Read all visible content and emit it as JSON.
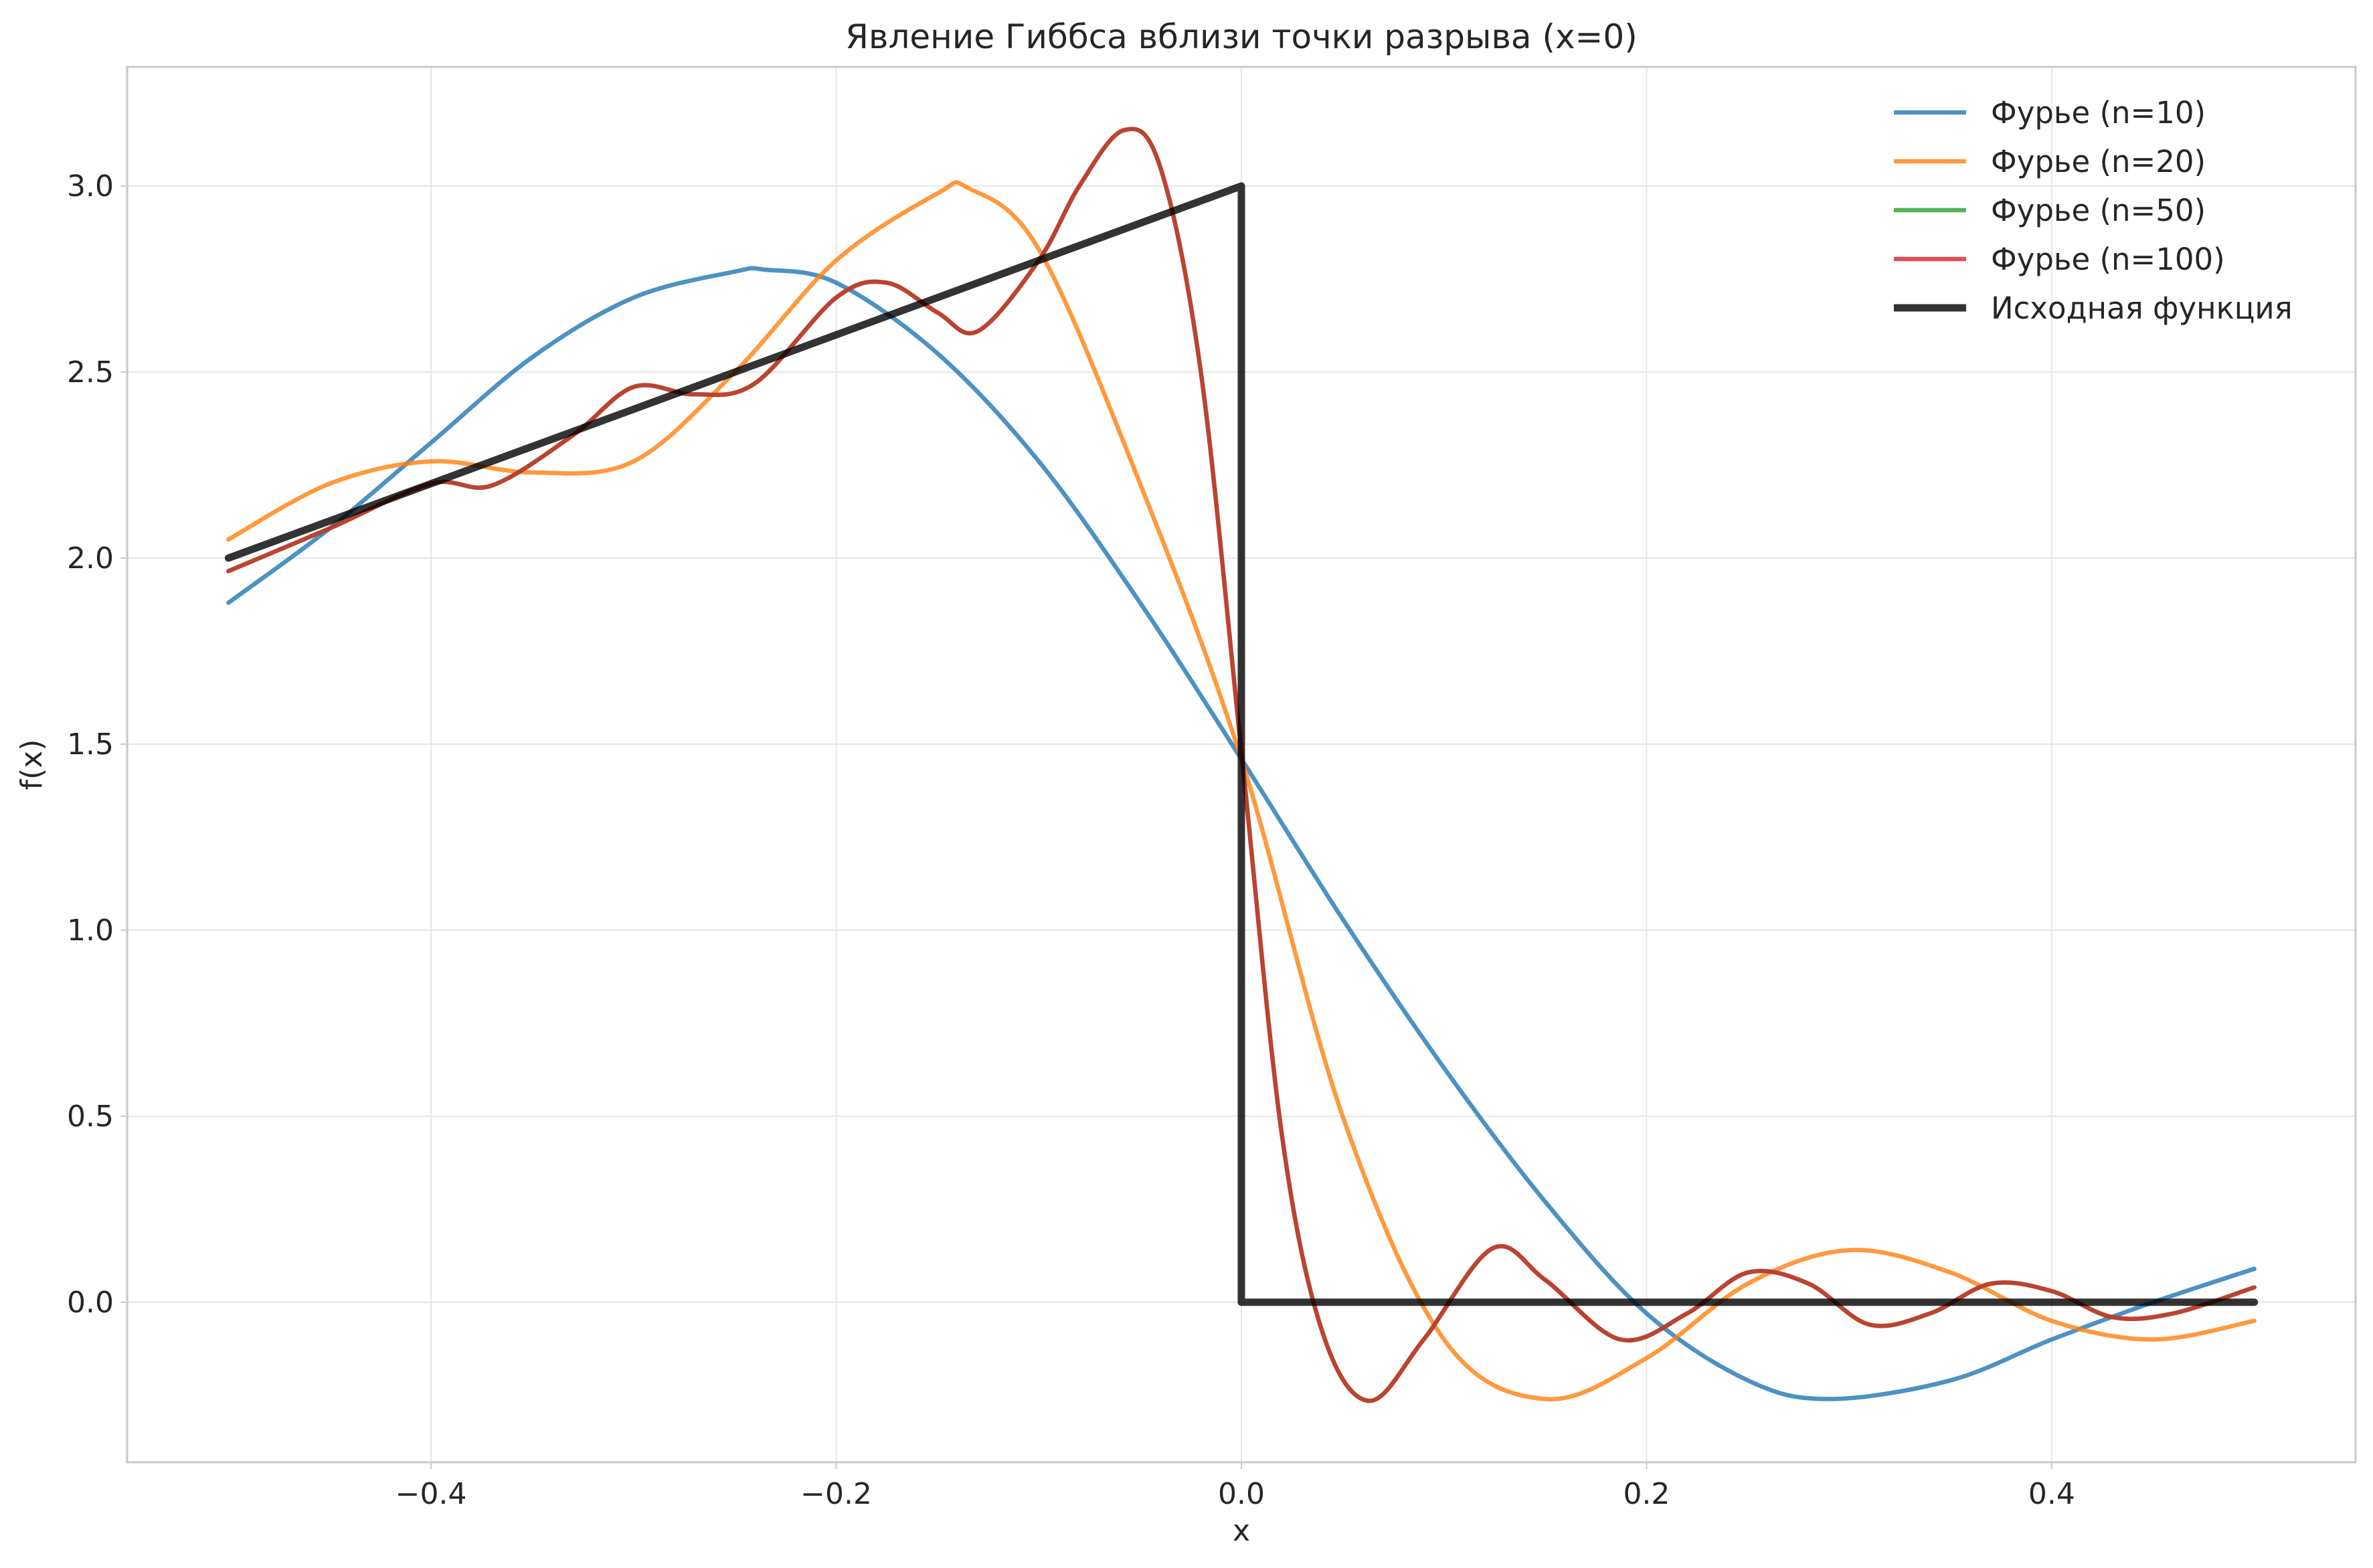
{
  "chart_data": {
    "type": "line",
    "title": "Явление Гиббса вблизи точки разрыва (x=0)",
    "xlabel": "x",
    "ylabel": "f(x)",
    "xlim": [
      -0.55,
      0.55
    ],
    "ylim": [
      -0.43,
      3.32
    ],
    "x_ticks": [
      -0.4,
      -0.2,
      0.0,
      0.2,
      0.4
    ],
    "x_tick_labels": [
      "−0.4",
      "−0.2",
      "0.0",
      "0.2",
      "0.4"
    ],
    "y_ticks": [
      0.0,
      0.5,
      1.0,
      1.5,
      2.0,
      2.5,
      3.0
    ],
    "y_tick_labels": [
      "0.0",
      "0.5",
      "1.0",
      "1.5",
      "2.0",
      "2.5",
      "3.0"
    ],
    "grid": true,
    "legend_position": "top-right",
    "series": [
      {
        "name": "Фурье (n=10)",
        "color": "#1f77b4",
        "x": [
          -0.5,
          -0.45,
          -0.4,
          -0.35,
          -0.3,
          -0.25,
          -0.235,
          -0.2,
          -0.15,
          -0.1,
          -0.05,
          0.0,
          0.05,
          0.1,
          0.15,
          0.2,
          0.25,
          0.29,
          0.35,
          0.4,
          0.45,
          0.5
        ],
        "y": [
          1.88,
          2.08,
          2.31,
          2.54,
          2.7,
          2.77,
          2.775,
          2.74,
          2.55,
          2.26,
          1.88,
          1.46,
          1.03,
          0.63,
          0.27,
          -0.03,
          -0.21,
          -0.26,
          -0.21,
          -0.1,
          0.0,
          0.09
        ]
      },
      {
        "name": "Фурье (n=20)",
        "color": "#ff7f0e",
        "x": [
          -0.5,
          -0.45,
          -0.4,
          -0.35,
          -0.3,
          -0.25,
          -0.2,
          -0.15,
          -0.135,
          -0.1,
          -0.05,
          0.0,
          0.05,
          0.1,
          0.15,
          0.2,
          0.25,
          0.3,
          0.35,
          0.4,
          0.45,
          0.5
        ],
        "y": [
          2.05,
          2.2,
          2.26,
          2.23,
          2.26,
          2.5,
          2.8,
          2.98,
          2.995,
          2.83,
          2.2,
          1.46,
          0.5,
          -0.1,
          -0.26,
          -0.15,
          0.05,
          0.14,
          0.08,
          -0.05,
          -0.1,
          -0.05
        ]
      },
      {
        "name": "Фурье (n=50)",
        "color": "#2ca02c",
        "x": [
          -0.5,
          -0.45,
          -0.4,
          -0.37,
          -0.33,
          -0.3,
          -0.27,
          -0.24,
          -0.2,
          -0.175,
          -0.15,
          -0.13,
          -0.1,
          -0.08,
          -0.058,
          -0.04,
          -0.02,
          0.0,
          0.02,
          0.04,
          0.063,
          0.09,
          0.124,
          0.15,
          0.187,
          0.22,
          0.25,
          0.28,
          0.31,
          0.34,
          0.37,
          0.4,
          0.43,
          0.46,
          0.5
        ],
        "y": [
          1.965,
          2.08,
          2.2,
          2.195,
          2.33,
          2.46,
          2.44,
          2.47,
          2.7,
          2.74,
          2.66,
          2.61,
          2.8,
          3.0,
          3.15,
          3.05,
          2.5,
          1.48,
          0.45,
          -0.08,
          -0.265,
          -0.1,
          0.145,
          0.06,
          -0.1,
          -0.03,
          0.08,
          0.05,
          -0.06,
          -0.03,
          0.05,
          0.03,
          -0.04,
          -0.03,
          0.04
        ]
      },
      {
        "name": "Фурье (n=100)",
        "color": "#d62728",
        "x": [
          -0.5,
          -0.45,
          -0.4,
          -0.37,
          -0.33,
          -0.3,
          -0.27,
          -0.24,
          -0.2,
          -0.175,
          -0.15,
          -0.13,
          -0.1,
          -0.08,
          -0.058,
          -0.04,
          -0.02,
          0.0,
          0.02,
          0.04,
          0.063,
          0.09,
          0.124,
          0.15,
          0.187,
          0.22,
          0.25,
          0.28,
          0.31,
          0.34,
          0.37,
          0.4,
          0.43,
          0.46,
          0.5
        ],
        "y": [
          1.965,
          2.08,
          2.2,
          2.195,
          2.33,
          2.46,
          2.44,
          2.47,
          2.7,
          2.74,
          2.66,
          2.61,
          2.8,
          3.0,
          3.15,
          3.05,
          2.5,
          1.48,
          0.45,
          -0.08,
          -0.265,
          -0.1,
          0.145,
          0.06,
          -0.1,
          -0.03,
          0.08,
          0.05,
          -0.06,
          -0.03,
          0.05,
          0.03,
          -0.04,
          -0.03,
          0.04
        ]
      },
      {
        "name": "Исходная функция",
        "color": "#000000",
        "x": [
          -0.5,
          0.0,
          0.0,
          0.5
        ],
        "y": [
          2.0,
          3.0,
          0.0,
          0.0
        ]
      }
    ]
  }
}
